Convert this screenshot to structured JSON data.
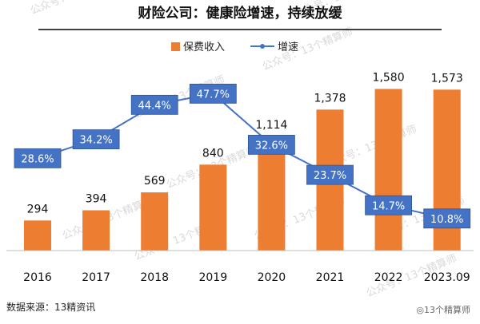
{
  "chart_data": {
    "type": "bar+line",
    "title": "财险公司：健康险增速，持续放缓",
    "categories": [
      "2016",
      "2017",
      "2018",
      "2019",
      "2020",
      "2021",
      "2022",
      "2023.09"
    ],
    "series": [
      {
        "name": "保费收入",
        "type": "bar",
        "values": [
          294,
          394,
          569,
          840,
          1114,
          1378,
          1580,
          1573
        ],
        "labels": [
          "294",
          "394",
          "569",
          "840",
          "1,114",
          "1,378",
          "1,580",
          "1,573"
        ],
        "color": "#ED7D31"
      },
      {
        "name": "增速",
        "type": "line",
        "values": [
          28.6,
          34.2,
          44.4,
          47.7,
          32.6,
          23.7,
          14.7,
          10.8
        ],
        "labels": [
          "28.6%",
          "34.2%",
          "44.4%",
          "47.7%",
          "32.6%",
          "23.7%",
          "14.7%",
          "10.8%"
        ],
        "color": "#4472C4"
      }
    ],
    "legend_position": "top-center",
    "grid": false
  },
  "footer": {
    "source": "数据来源：13精资讯",
    "credit": "◎13个精算师"
  },
  "watermark": {
    "text": "公众号：13个精算师"
  }
}
